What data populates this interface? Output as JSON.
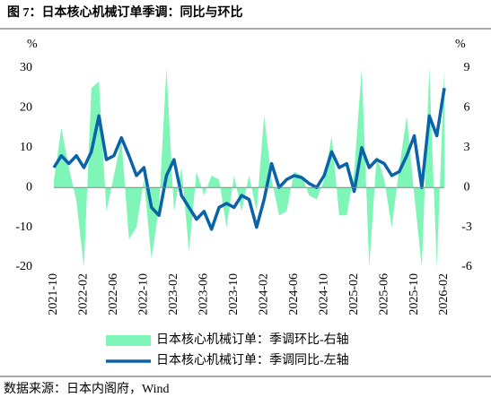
{
  "chart_data": {
    "type": "combo",
    "title": "图 7：日本核心机械订单季调：同比与环比",
    "source": "数据来源：日本内阁府，Wind",
    "ylabel": "%",
    "y2label": "%",
    "categories": [
      "2021-10",
      null,
      null,
      null,
      "2022-02",
      null,
      null,
      null,
      "2022-06",
      null,
      null,
      null,
      "2022-10",
      null,
      null,
      null,
      "2023-02",
      null,
      null,
      null,
      "2023-06",
      null,
      null,
      null,
      "2023-10",
      null,
      null,
      null,
      "2024-02",
      null,
      null,
      null,
      "2024-06",
      null,
      null,
      null,
      "2024-10",
      null,
      null,
      null,
      "2025-02",
      null,
      null,
      null,
      "2025-06",
      null,
      null,
      null,
      "2025-10",
      null,
      null,
      null,
      "2026-02"
    ],
    "series": [
      {
        "name": "日本核心机械订单：季调环比-右轴",
        "kind": "area",
        "axis": "y2",
        "color": "#80f5b8",
        "values": [
          0.5,
          4.5,
          1.5,
          -1,
          -6,
          7.5,
          8,
          -1.8,
          0.9,
          3.6,
          -3.9,
          -3,
          0.6,
          -5.4,
          -1.5,
          9,
          -1.8,
          1.5,
          -4.8,
          1.2,
          -0.6,
          0.9,
          0.6,
          -3,
          0.9,
          -1.8,
          0.9,
          -1.8,
          5.4,
          0.6,
          -2.1,
          -1.8,
          1.2,
          0.9,
          -0.6,
          -0.9,
          0.6,
          3.9,
          -2.1,
          -2.1,
          1.2,
          9,
          -6,
          2.4,
          0.6,
          -3,
          1.5,
          5.4,
          -0.6,
          -6,
          9,
          -6,
          9
        ]
      },
      {
        "name": "日本核心机械订单：季调同比-左轴",
        "kind": "line",
        "color": "#0a62a8",
        "values": [
          5,
          8,
          6,
          8,
          5,
          9,
          18,
          7,
          8,
          12.5,
          8,
          3,
          5,
          -5,
          -7,
          3,
          7,
          -2,
          -5,
          -8,
          -6,
          -10.5,
          -5,
          -4,
          -5,
          -2,
          -3,
          -10,
          -3,
          6,
          0,
          2,
          3,
          2.5,
          1,
          0,
          3,
          9,
          5,
          6,
          -1,
          10,
          5,
          7,
          6,
          3,
          4,
          8,
          13,
          0,
          18,
          13,
          25
        ]
      }
    ],
    "ylim": [
      -20,
      30
    ],
    "yticks": [
      -20,
      -10,
      0,
      10,
      20,
      30
    ],
    "y2lim": [
      -6,
      9
    ],
    "y2ticks": [
      -6,
      -3,
      0,
      3,
      6,
      9
    ]
  }
}
